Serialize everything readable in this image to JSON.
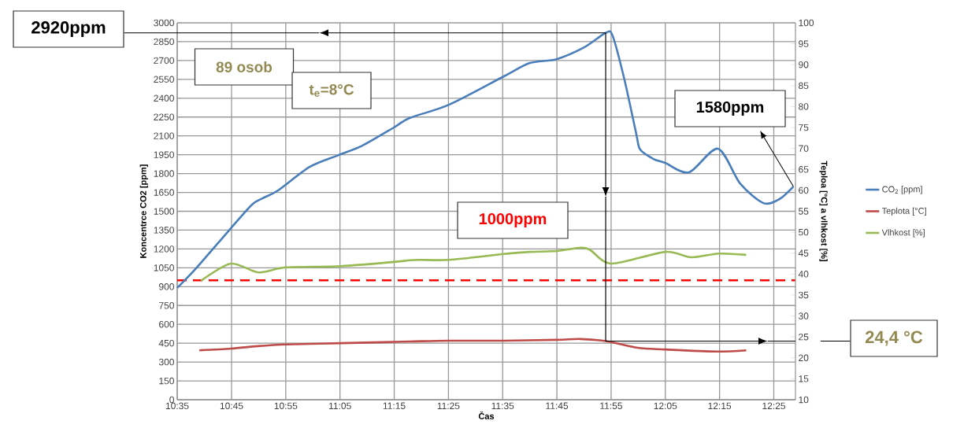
{
  "chart_data": {
    "type": "line",
    "xlabel": "Čas",
    "ylabel": "Koncentrce CO2 [ppm]",
    "y2label": "Teploa [°C] a vlhkost  [%]",
    "xlim": [
      10.583,
      12.4833
    ],
    "xticks": [
      {
        "value": 10.583,
        "label": "10:35"
      },
      {
        "value": 10.75,
        "label": "10:45"
      },
      {
        "value": 10.9167,
        "label": "10:55"
      },
      {
        "value": 11.0833,
        "label": "11:05"
      },
      {
        "value": 11.25,
        "label": "11:15"
      },
      {
        "value": 11.4167,
        "label": "11:25"
      },
      {
        "value": 11.5833,
        "label": "11:35"
      },
      {
        "value": 11.75,
        "label": "11:45"
      },
      {
        "value": 11.9167,
        "label": "11:55"
      },
      {
        "value": 12.0833,
        "label": "12:05"
      },
      {
        "value": 12.25,
        "label": "12:15"
      },
      {
        "value": 12.4167,
        "label": "12:25"
      }
    ],
    "ylim": [
      0,
      3000
    ],
    "yticks": [
      0,
      150,
      300,
      450,
      600,
      750,
      900,
      1050,
      1200,
      1350,
      1500,
      1650,
      1800,
      1950,
      2100,
      2250,
      2400,
      2550,
      2700,
      2850,
      3000
    ],
    "y2lim": [
      10,
      100
    ],
    "y2ticks": [
      10,
      15,
      20,
      25,
      30,
      35,
      40,
      45,
      50,
      55,
      60,
      65,
      70,
      75,
      80,
      85,
      90,
      95,
      100
    ],
    "grid": true,
    "legend": "right",
    "marker": "none",
    "line_style": "solid",
    "series": [
      {
        "name": "CO$_{2}$ [ppm]",
        "color": "#4a7ebb",
        "x": [
          10.583,
          10.639,
          10.748,
          10.813,
          10.845,
          10.893,
          10.99,
          11.079,
          11.152,
          11.249,
          11.297,
          11.418,
          11.587,
          11.667,
          11.749,
          11.834,
          11.9,
          11.921,
          11.957,
          11.994,
          12.006,
          12.047,
          12.083,
          12.156,
          12.245,
          12.313,
          12.385,
          12.434,
          12.477
        ],
        "values": [
          890,
          1040,
          1365,
          1553,
          1603,
          1666,
          1853,
          1947,
          2022,
          2167,
          2242,
          2348,
          2574,
          2680,
          2711,
          2805,
          2920,
          2899,
          2555,
          2116,
          1991,
          1916,
          1885,
          1810,
          1998,
          1722,
          1565,
          1597,
          1697
        ]
      },
      {
        "name": "Teplota [°C]",
        "color": "#be4b48",
        "axis": "y2",
        "x": [
          10.651,
          10.748,
          10.83,
          10.917,
          11.087,
          11.297,
          11.418,
          11.587,
          11.749,
          11.822,
          11.9,
          11.999,
          12.083,
          12.24,
          12.332
        ],
        "values": [
          21.8,
          22.2,
          22.8,
          23.2,
          23.5,
          23.9,
          24.1,
          24.1,
          24.3,
          24.5,
          24.0,
          22.4,
          22.0,
          21.5,
          21.8
        ]
      },
      {
        "name": "Vlhkost [%]",
        "color": "#98b954",
        "axis": "y2",
        "x": [
          10.656,
          10.748,
          10.833,
          10.917,
          11.087,
          11.249,
          11.297,
          11.328,
          11.418,
          11.587,
          11.667,
          11.749,
          11.824,
          11.853,
          11.919,
          12.083,
          12.163,
          12.247,
          12.332
        ],
        "values": [
          38.4,
          42.5,
          40.4,
          41.6,
          41.9,
          42.9,
          43.3,
          43.4,
          43.4,
          44.8,
          45.3,
          45.5,
          46.3,
          45.7,
          42.5,
          45.3,
          44.0,
          44.9,
          44.6
        ]
      }
    ],
    "ref_lines": [
      {
        "axis": "y",
        "value": 950,
        "label": "1000ppm",
        "color": "#ff0000",
        "line_style": "dashed"
      }
    ],
    "annotations": [
      "2920ppm",
      "89 osob",
      "t$_{e}$=8°C",
      "1580ppm",
      "24,4 °C"
    ]
  }
}
